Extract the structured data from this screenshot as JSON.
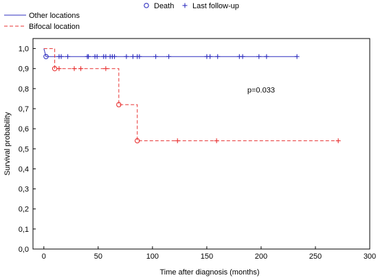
{
  "chart_data": {
    "type": "line",
    "subtype": "kaplan-meier",
    "xlabel": "Time after diagnosis (months)",
    "ylabel": "Survival probability",
    "xlim": [
      -10,
      300
    ],
    "ylim": [
      0,
      1.05
    ],
    "x_ticks": [
      0,
      50,
      100,
      150,
      200,
      250,
      300
    ],
    "y_ticks": [
      0.0,
      0.1,
      0.2,
      0.3,
      0.4,
      0.5,
      0.6,
      0.7,
      0.8,
      0.9,
      1.0
    ],
    "y_tick_labels": [
      "0,0",
      "0,1",
      "0,2",
      "0,3",
      "0,4",
      "0,5",
      "0,6",
      "0,7",
      "0,8",
      "0,9",
      "1,0"
    ],
    "grid": false,
    "marker_legend": [
      {
        "label": "Death",
        "marker": "circle"
      },
      {
        "label": "Last follow-up",
        "marker": "plus"
      }
    ],
    "series": [
      {
        "name": "Other locations",
        "color": "#2f2fbf",
        "line_style": "solid",
        "steps": [
          [
            0,
            1.0
          ],
          [
            2,
            0.96
          ],
          [
            233,
            0.96
          ]
        ],
        "deaths": [
          [
            2,
            0.96
          ]
        ],
        "censored": [
          [
            14,
            0.96
          ],
          [
            16,
            0.96
          ],
          [
            22,
            0.96
          ],
          [
            40,
            0.96
          ],
          [
            41,
            0.96
          ],
          [
            47,
            0.96
          ],
          [
            49,
            0.96
          ],
          [
            55,
            0.96
          ],
          [
            57,
            0.96
          ],
          [
            61,
            0.96
          ],
          [
            63,
            0.96
          ],
          [
            65,
            0.96
          ],
          [
            76,
            0.96
          ],
          [
            82,
            0.96
          ],
          [
            86,
            0.96
          ],
          [
            88,
            0.96
          ],
          [
            103,
            0.96
          ],
          [
            115,
            0.96
          ],
          [
            150,
            0.96
          ],
          [
            153,
            0.96
          ],
          [
            160,
            0.96
          ],
          [
            180,
            0.96
          ],
          [
            183,
            0.96
          ],
          [
            198,
            0.96
          ],
          [
            205,
            0.96
          ],
          [
            233,
            0.96
          ]
        ]
      },
      {
        "name": "Bifocal location",
        "color": "#e83030",
        "line_style": "dashed",
        "steps": [
          [
            0,
            1.0
          ],
          [
            10,
            1.0
          ],
          [
            10,
            0.9
          ],
          [
            69,
            0.9
          ],
          [
            69,
            0.72
          ],
          [
            86,
            0.72
          ],
          [
            86,
            0.54
          ],
          [
            271,
            0.54
          ]
        ],
        "deaths": [
          [
            10,
            0.9
          ],
          [
            69,
            0.72
          ],
          [
            86,
            0.54
          ]
        ],
        "censored": [
          [
            14,
            0.9
          ],
          [
            28,
            0.9
          ],
          [
            34,
            0.9
          ],
          [
            57,
            0.9
          ],
          [
            123,
            0.54
          ],
          [
            159,
            0.54
          ],
          [
            271,
            0.54
          ]
        ]
      }
    ],
    "annotations": [
      {
        "text": "p=0.033",
        "x": 200,
        "y": 0.78
      }
    ]
  }
}
